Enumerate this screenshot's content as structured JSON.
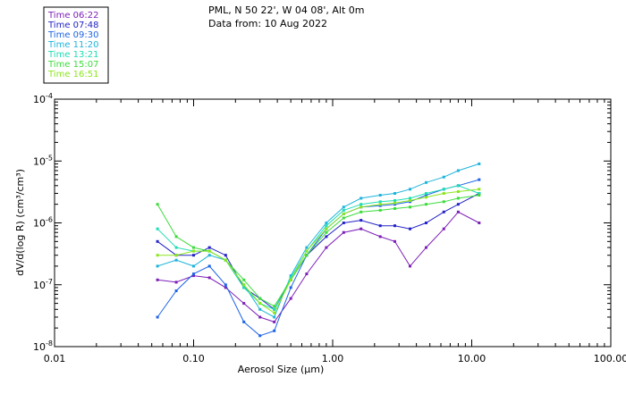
{
  "chart_data": {
    "type": "line",
    "title": "PML, N 50 22', W 04 08', Alt 0m",
    "subtitle": "Data from: 10 Aug 2022",
    "xlabel": "Aerosol Size (µm)",
    "ylabel": "dV/d(log R) (cm³/cm³)",
    "xscale": "log",
    "yscale": "log",
    "xlim": [
      0.01,
      100
    ],
    "ylim": [
      1e-08,
      0.0001
    ],
    "x_ticks": [
      {
        "value": 0.01,
        "label": "0.01"
      },
      {
        "value": 0.1,
        "label": "0.10"
      },
      {
        "value": 1,
        "label": "1.00"
      },
      {
        "value": 10,
        "label": "10.00"
      },
      {
        "value": 100,
        "label": "100.00"
      }
    ],
    "y_ticks": [
      {
        "value": 1e-08,
        "mantissa": "10",
        "exp": "-8"
      },
      {
        "value": 1e-07,
        "mantissa": "10",
        "exp": "-7"
      },
      {
        "value": 1e-06,
        "mantissa": "10",
        "exp": "-6"
      },
      {
        "value": 1e-05,
        "mantissa": "10",
        "exp": "-5"
      },
      {
        "value": 0.0001,
        "mantissa": "10",
        "exp": "-4"
      }
    ],
    "legend_position": "top-left",
    "x": [
      0.055,
      0.075,
      0.1,
      0.13,
      0.17,
      0.23,
      0.3,
      0.38,
      0.5,
      0.65,
      0.9,
      1.2,
      1.6,
      2.2,
      2.8,
      3.6,
      4.7,
      6.3,
      8.0,
      11.3
    ],
    "series": [
      {
        "name": "Time 06:22",
        "color": "#7d1fb8",
        "values": [
          1.2e-07,
          1.1e-07,
          1.4e-07,
          1.3e-07,
          9e-08,
          5e-08,
          3e-08,
          2.5e-08,
          6e-08,
          1.5e-07,
          4e-07,
          7e-07,
          8e-07,
          6e-07,
          5e-07,
          2e-07,
          4e-07,
          8e-07,
          1.5e-06,
          1e-06
        ]
      },
      {
        "name": "Time 07:48",
        "color": "#2323c8",
        "values": [
          5e-07,
          3e-07,
          3e-07,
          4e-07,
          3e-07,
          9e-08,
          6e-08,
          4e-08,
          1.2e-07,
          3e-07,
          6e-07,
          1e-06,
          1.1e-06,
          9e-07,
          9e-07,
          8e-07,
          1e-06,
          1.5e-06,
          2e-06,
          3e-06
        ]
      },
      {
        "name": "Time 09:30",
        "color": "#1e64e6",
        "values": [
          3e-08,
          8e-08,
          1.5e-07,
          2e-07,
          1e-07,
          2.5e-08,
          1.5e-08,
          1.8e-08,
          9e-08,
          3e-07,
          8e-07,
          1.4e-06,
          1.8e-06,
          1.9e-06,
          2e-06,
          2.2e-06,
          2.8e-06,
          3.5e-06,
          4e-06,
          5e-06
        ]
      },
      {
        "name": "Time 11:20",
        "color": "#1eb4dc",
        "values": [
          2e-07,
          2.5e-07,
          2e-07,
          3e-07,
          2.5e-07,
          1e-07,
          4e-08,
          3e-08,
          1.4e-07,
          4e-07,
          1e-06,
          1.8e-06,
          2.5e-06,
          2.8e-06,
          3e-06,
          3.5e-06,
          4.5e-06,
          5.5e-06,
          7e-06,
          9e-06
        ]
      },
      {
        "name": "Time 13:21",
        "color": "#1edcb4",
        "values": [
          8e-07,
          4e-07,
          3.5e-07,
          3.5e-07,
          2.5e-07,
          9e-08,
          5e-08,
          4e-08,
          1.3e-07,
          3.5e-07,
          9e-07,
          1.6e-06,
          2e-06,
          2.2e-06,
          2.3e-06,
          2.5e-06,
          3e-06,
          3.5e-06,
          4e-06,
          3e-06
        ]
      },
      {
        "name": "Time 15:07",
        "color": "#3cdc3c",
        "values": [
          2e-06,
          6e-07,
          4e-07,
          3.5e-07,
          2.5e-07,
          1.2e-07,
          6e-08,
          4.5e-08,
          1.2e-07,
          3e-07,
          7e-07,
          1.2e-06,
          1.5e-06,
          1.6e-06,
          1.7e-06,
          1.8e-06,
          2e-06,
          2.2e-06,
          2.5e-06,
          2.8e-06
        ]
      },
      {
        "name": "Time 16:51",
        "color": "#8ce61e",
        "values": [
          3e-07,
          3e-07,
          3.5e-07,
          3.5e-07,
          2.5e-07,
          1e-07,
          5e-08,
          3.5e-08,
          1.2e-07,
          3.5e-07,
          8e-07,
          1.4e-06,
          1.8e-06,
          2e-06,
          2.1e-06,
          2.3e-06,
          2.6e-06,
          3e-06,
          3.2e-06,
          3.5e-06
        ]
      }
    ]
  }
}
